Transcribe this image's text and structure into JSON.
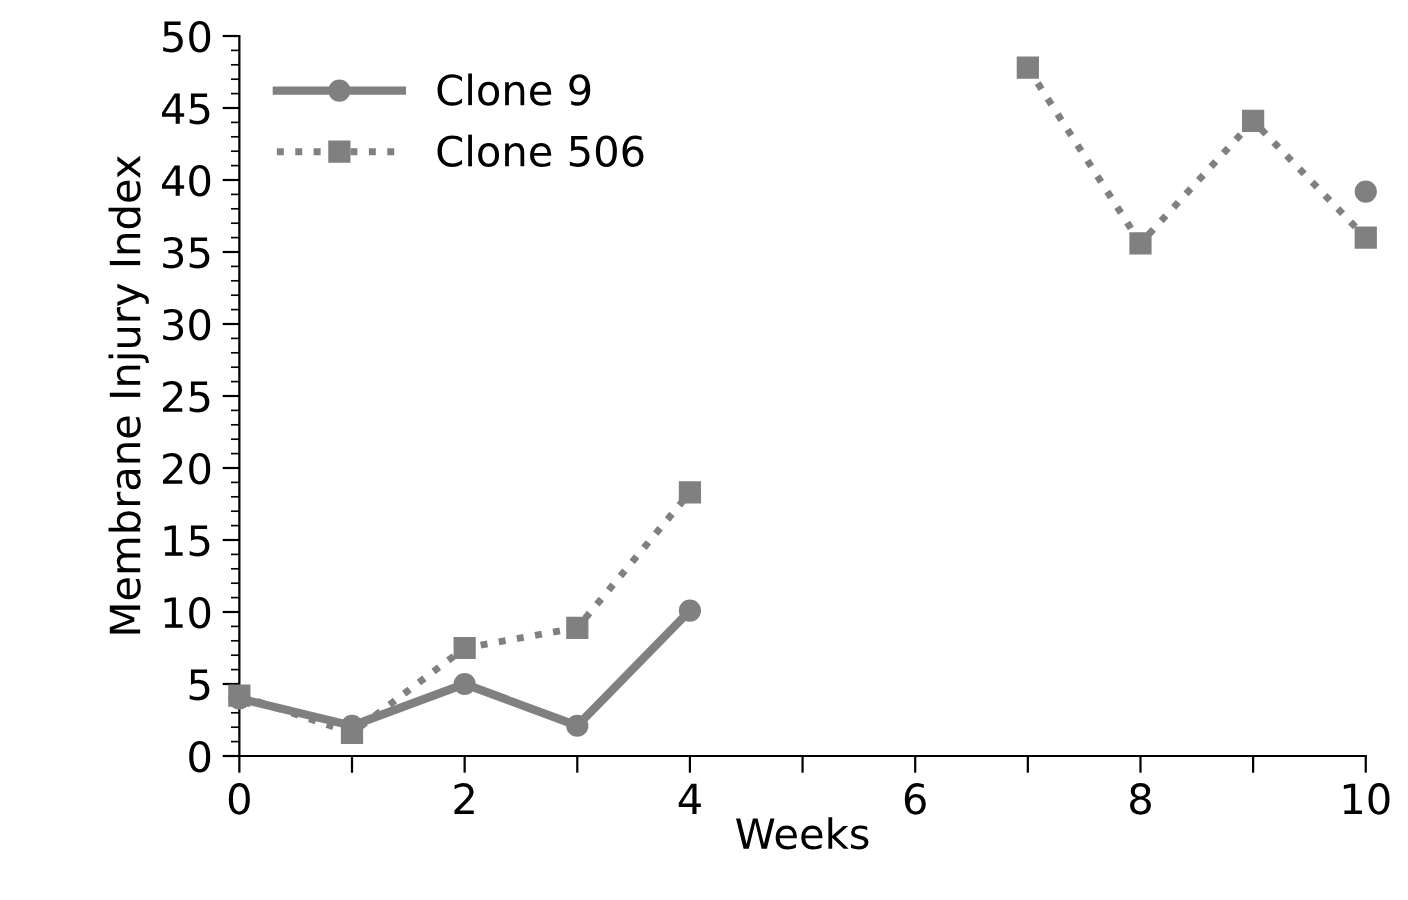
{
  "chart_data": {
    "type": "line",
    "xlabel": "Weeks",
    "ylabel": "Membrane Injury Index",
    "x": [
      0,
      1,
      2,
      3,
      4,
      5,
      6,
      7,
      8,
      9,
      10
    ],
    "series": [
      {
        "name": "Clone 9",
        "color": "#808080",
        "marker": "circle",
        "line_style": "solid",
        "values": [
          4.0,
          2.1,
          5.0,
          2.1,
          10.1,
          null,
          null,
          null,
          null,
          null,
          39.2
        ]
      },
      {
        "name": "Clone 506",
        "color": "#808080",
        "marker": "square",
        "line_style": "dotted",
        "values": [
          4.2,
          1.6,
          7.5,
          8.9,
          18.3,
          null,
          null,
          47.8,
          35.6,
          44.1,
          36.0
        ]
      }
    ],
    "xlim": [
      0,
      10
    ],
    "xticks": [
      0,
      {
        "value": 1,
        "label": null
      },
      2,
      {
        "value": 3,
        "label": null
      },
      4,
      {
        "value": 5,
        "label": null
      },
      6,
      {
        "value": 7,
        "label": null
      },
      8,
      {
        "value": 9,
        "label": null
      },
      10
    ],
    "ylim": [
      0,
      50
    ],
    "yticks": [
      0,
      5,
      10,
      15,
      20,
      25,
      30,
      35,
      40,
      45,
      50
    ],
    "legend": "top left",
    "grid": false
  }
}
